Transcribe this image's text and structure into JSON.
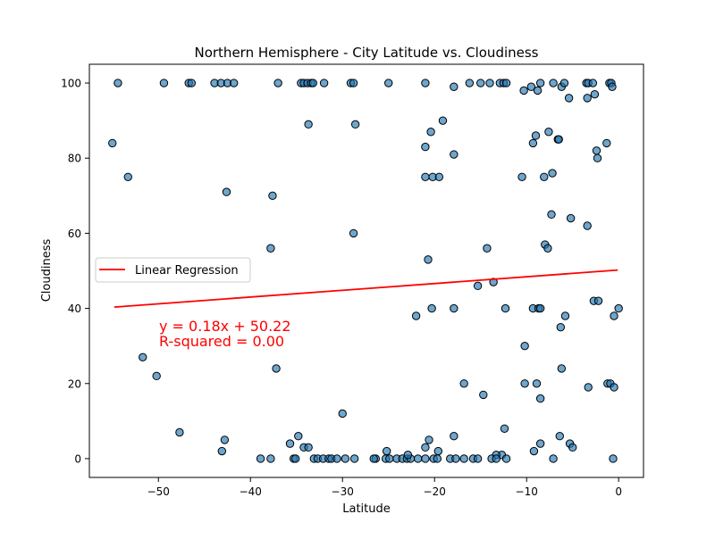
{
  "chart_data": {
    "type": "scatter",
    "title": "Northern Hemisphere - City Latitude vs. Cloudiness",
    "xlabel": "Latitude",
    "ylabel": "Cloudiness",
    "xlim": [
      -57.5,
      2.7
    ],
    "ylim": [
      -5,
      105
    ],
    "xticks": [
      -50,
      -40,
      -30,
      -20,
      -10,
      0
    ],
    "yticks": [
      0,
      20,
      40,
      60,
      80,
      100
    ],
    "xtick_labels": [
      "−50",
      "−40",
      "−30",
      "−20",
      "−10",
      "0"
    ],
    "ytick_labels": [
      "0",
      "20",
      "40",
      "60",
      "80",
      "100"
    ],
    "grid": false,
    "legend": {
      "placement": "center-left",
      "entries": [
        "Linear Regression"
      ]
    },
    "marker_color": "#1f77b4",
    "regression_color": "#ff0000",
    "regression": {
      "slope": 0.18,
      "intercept": 50.22,
      "x_range": [
        -54.8,
        -0.1
      ]
    },
    "annotations": [
      "y = 0.18x + 50.22",
      "R-squared = 0.00"
    ],
    "series": [
      {
        "points": [
          [
            -54.4,
            100
          ],
          [
            -49.4,
            100
          ],
          [
            -46.7,
            100
          ],
          [
            -46.4,
            100
          ],
          [
            -43.9,
            100
          ],
          [
            -43.2,
            100
          ],
          [
            -42.5,
            100
          ],
          [
            -41.8,
            100
          ],
          [
            -37.0,
            100
          ],
          [
            -34.5,
            100
          ],
          [
            -34.2,
            100
          ],
          [
            -33.8,
            100
          ],
          [
            -33.4,
            100
          ],
          [
            -33.2,
            100
          ],
          [
            -32.0,
            100
          ],
          [
            -29.1,
            100
          ],
          [
            -28.8,
            100
          ],
          [
            -25.0,
            100
          ],
          [
            -21.0,
            100
          ],
          [
            -17.9,
            99
          ],
          [
            -16.2,
            100
          ],
          [
            -15.0,
            100
          ],
          [
            -14.0,
            100
          ],
          [
            -12.9,
            100
          ],
          [
            -12.5,
            100
          ],
          [
            -12.2,
            100
          ],
          [
            -10.3,
            98
          ],
          [
            -9.5,
            99
          ],
          [
            -8.8,
            98
          ],
          [
            -8.5,
            100
          ],
          [
            -7.1,
            100
          ],
          [
            -6.2,
            99
          ],
          [
            -5.9,
            100
          ],
          [
            -5.4,
            96
          ],
          [
            -3.5,
            100
          ],
          [
            -3.3,
            100
          ],
          [
            -2.8,
            100
          ],
          [
            -3.4,
            96
          ],
          [
            -2.6,
            97
          ],
          [
            -1.0,
            100
          ],
          [
            -0.8,
            100
          ],
          [
            -0.7,
            99
          ],
          [
            -55.0,
            84
          ],
          [
            -53.3,
            75
          ],
          [
            -33.7,
            89
          ],
          [
            -28.6,
            89
          ],
          [
            -20.4,
            87
          ],
          [
            -19.1,
            90
          ],
          [
            -21.0,
            83
          ],
          [
            -17.9,
            81
          ],
          [
            -21.0,
            75
          ],
          [
            -20.2,
            75
          ],
          [
            -19.5,
            75
          ],
          [
            -10.5,
            75
          ],
          [
            -9.3,
            84
          ],
          [
            -9.0,
            86
          ],
          [
            -7.6,
            87
          ],
          [
            -6.6,
            85
          ],
          [
            -6.5,
            85
          ],
          [
            -7.2,
            76
          ],
          [
            -8.1,
            75
          ],
          [
            -2.4,
            82
          ],
          [
            -2.3,
            80
          ],
          [
            -1.3,
            84
          ],
          [
            -42.6,
            71
          ],
          [
            -37.6,
            70
          ],
          [
            -7.3,
            65
          ],
          [
            -5.2,
            64
          ],
          [
            -3.4,
            62
          ],
          [
            -37.8,
            56
          ],
          [
            -28.8,
            60
          ],
          [
            -20.7,
            53
          ],
          [
            -14.3,
            56
          ],
          [
            -8.0,
            57
          ],
          [
            -7.7,
            56
          ],
          [
            -20.3,
            40
          ],
          [
            -17.9,
            40
          ],
          [
            -13.6,
            47
          ],
          [
            -15.3,
            46
          ],
          [
            -12.3,
            40
          ],
          [
            -9.3,
            40
          ],
          [
            -8.7,
            40
          ],
          [
            -8.5,
            40
          ],
          [
            -5.8,
            38
          ],
          [
            -2.7,
            42
          ],
          [
            -2.2,
            42
          ],
          [
            -0.5,
            38
          ],
          [
            0.0,
            40
          ],
          [
            -22.0,
            38
          ],
          [
            -6.3,
            35
          ],
          [
            -51.7,
            27
          ],
          [
            -50.2,
            22
          ],
          [
            -37.2,
            24
          ],
          [
            -16.8,
            20
          ],
          [
            -14.7,
            17
          ],
          [
            -10.2,
            30
          ],
          [
            -10.2,
            20
          ],
          [
            -8.9,
            20
          ],
          [
            -8.5,
            16
          ],
          [
            -6.2,
            24
          ],
          [
            -3.3,
            19
          ],
          [
            -1.2,
            20
          ],
          [
            -0.9,
            20
          ],
          [
            -0.5,
            19
          ],
          [
            -30.0,
            12
          ],
          [
            -47.7,
            7
          ],
          [
            -42.8,
            5
          ],
          [
            -43.1,
            2
          ],
          [
            -35.7,
            4
          ],
          [
            -34.8,
            6
          ],
          [
            -34.2,
            3
          ],
          [
            -33.7,
            3
          ],
          [
            -25.2,
            2
          ],
          [
            -21.0,
            3
          ],
          [
            -20.6,
            5
          ],
          [
            -19.6,
            2
          ],
          [
            -17.9,
            6
          ],
          [
            -12.4,
            8
          ],
          [
            -12.7,
            1
          ],
          [
            -13.3,
            1
          ],
          [
            -8.5,
            4
          ],
          [
            -9.2,
            2
          ],
          [
            -6.4,
            6
          ],
          [
            -5.3,
            4
          ],
          [
            -5.0,
            3
          ],
          [
            -38.9,
            0
          ],
          [
            -37.8,
            0
          ],
          [
            -35.3,
            0
          ],
          [
            -35.1,
            0
          ],
          [
            -33.1,
            0
          ],
          [
            -32.7,
            0
          ],
          [
            -32.1,
            0
          ],
          [
            -31.5,
            0
          ],
          [
            -31.2,
            0
          ],
          [
            -30.6,
            0
          ],
          [
            -29.7,
            0
          ],
          [
            -28.7,
            0
          ],
          [
            -26.4,
            0
          ],
          [
            -25.3,
            0
          ],
          [
            -24.9,
            0
          ],
          [
            -24.1,
            0
          ],
          [
            -23.5,
            0
          ],
          [
            -23.0,
            0
          ],
          [
            -22.6,
            0
          ],
          [
            -21.8,
            0
          ],
          [
            -21.0,
            0
          ],
          [
            -20.1,
            0
          ],
          [
            -19.7,
            0
          ],
          [
            -18.3,
            0
          ],
          [
            -17.7,
            0
          ],
          [
            -16.8,
            0
          ],
          [
            -15.8,
            0
          ],
          [
            -15.3,
            0
          ],
          [
            -13.8,
            0
          ],
          [
            -13.3,
            0
          ],
          [
            -12.2,
            0
          ],
          [
            -7.1,
            0
          ],
          [
            -0.6,
            0
          ],
          [
            -26.6,
            0
          ],
          [
            -22.9,
            1
          ]
        ]
      }
    ]
  }
}
